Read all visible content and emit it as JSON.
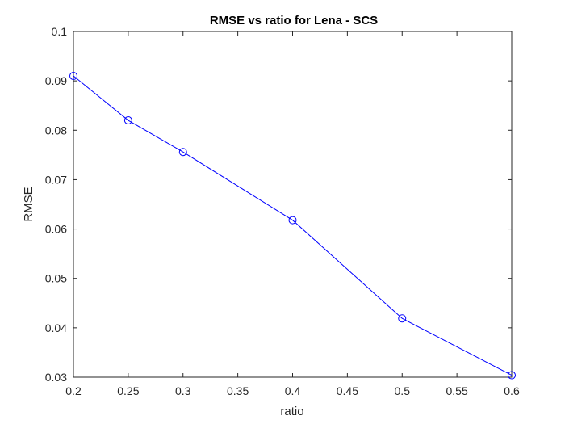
{
  "chart_data": {
    "type": "line",
    "title": "RMSE vs ratio for Lena - SCS",
    "xlabel": "ratio",
    "ylabel": "RMSE",
    "xlim": [
      0.2,
      0.6
    ],
    "ylim": [
      0.03,
      0.1
    ],
    "xticks": [
      "0.2",
      "0.25",
      "0.3",
      "0.35",
      "0.4",
      "0.45",
      "0.5",
      "0.55",
      "0.6"
    ],
    "yticks": [
      "0.03",
      "0.04",
      "0.05",
      "0.06",
      "0.07",
      "0.08",
      "0.09",
      "0.1"
    ],
    "grid": false,
    "series": [
      {
        "color": "#0000ff",
        "marker": "circle",
        "x": [
          0.2,
          0.25,
          0.3,
          0.4,
          0.5,
          0.6
        ],
        "y": [
          0.091,
          0.082,
          0.0756,
          0.0618,
          0.0419,
          0.0304
        ]
      }
    ]
  }
}
